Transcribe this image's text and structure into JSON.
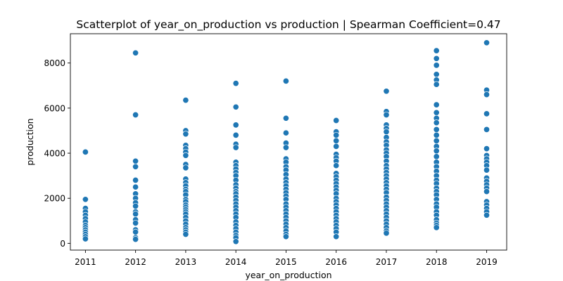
{
  "chart_data": {
    "type": "scatter",
    "title": "Scatterplot of year_on_production vs production | Spearman Coefficient=0.47",
    "xlabel": "year_on_production",
    "ylabel": "production",
    "xlim": [
      2010.7,
      2019.4
    ],
    "ylim": [
      -300,
      9300
    ],
    "xticks": [
      2011,
      2012,
      2013,
      2014,
      2015,
      2016,
      2017,
      2018,
      2019
    ],
    "yticks": [
      0,
      2000,
      4000,
      6000,
      8000
    ],
    "grid": false,
    "point_color": "#1f77b4",
    "series": [
      {
        "points": [
          [
            2011,
            4050
          ],
          [
            2011,
            1950
          ],
          [
            2011,
            1550
          ],
          [
            2011,
            1400
          ],
          [
            2011,
            1250
          ],
          [
            2011,
            1100
          ],
          [
            2011,
            950
          ],
          [
            2011,
            800
          ],
          [
            2011,
            700
          ],
          [
            2011,
            600
          ],
          [
            2011,
            500
          ],
          [
            2011,
            400
          ],
          [
            2011,
            300
          ],
          [
            2011,
            200
          ],
          [
            2012,
            8450
          ],
          [
            2012,
            5700
          ],
          [
            2012,
            3650
          ],
          [
            2012,
            3400
          ],
          [
            2012,
            2800
          ],
          [
            2012,
            2500
          ],
          [
            2012,
            2200
          ],
          [
            2012,
            2000
          ],
          [
            2012,
            1800
          ],
          [
            2012,
            1650
          ],
          [
            2012,
            1400
          ],
          [
            2012,
            1300
          ],
          [
            2012,
            1050
          ],
          [
            2012,
            900
          ],
          [
            2012,
            600
          ],
          [
            2012,
            500
          ],
          [
            2012,
            250
          ],
          [
            2012,
            180
          ],
          [
            2013,
            6350
          ],
          [
            2013,
            5000
          ],
          [
            2013,
            4850
          ],
          [
            2013,
            4350
          ],
          [
            2013,
            4200
          ],
          [
            2013,
            4050
          ],
          [
            2013,
            3900
          ],
          [
            2013,
            3500
          ],
          [
            2013,
            3350
          ],
          [
            2013,
            2850
          ],
          [
            2013,
            2700
          ],
          [
            2013,
            2550
          ],
          [
            2013,
            2400
          ],
          [
            2013,
            2300
          ],
          [
            2013,
            2150
          ],
          [
            2013,
            1950
          ],
          [
            2013,
            1850
          ],
          [
            2013,
            1700
          ],
          [
            2013,
            1600
          ],
          [
            2013,
            1500
          ],
          [
            2013,
            1400
          ],
          [
            2013,
            1300
          ],
          [
            2013,
            1150
          ],
          [
            2013,
            1000
          ],
          [
            2013,
            850
          ],
          [
            2013,
            700
          ],
          [
            2013,
            600
          ],
          [
            2013,
            500
          ],
          [
            2013,
            400
          ],
          [
            2014,
            7100
          ],
          [
            2014,
            6050
          ],
          [
            2014,
            5250
          ],
          [
            2014,
            4800
          ],
          [
            2014,
            4400
          ],
          [
            2014,
            4250
          ],
          [
            2014,
            3600
          ],
          [
            2014,
            3450
          ],
          [
            2014,
            3300
          ],
          [
            2014,
            3150
          ],
          [
            2014,
            3000
          ],
          [
            2014,
            2800
          ],
          [
            2014,
            2600
          ],
          [
            2014,
            2450
          ],
          [
            2014,
            2300
          ],
          [
            2014,
            2200
          ],
          [
            2014,
            2050
          ],
          [
            2014,
            1900
          ],
          [
            2014,
            1750
          ],
          [
            2014,
            1600
          ],
          [
            2014,
            1450
          ],
          [
            2014,
            1300
          ],
          [
            2014,
            1150
          ],
          [
            2014,
            950
          ],
          [
            2014,
            800
          ],
          [
            2014,
            650
          ],
          [
            2014,
            500
          ],
          [
            2014,
            350
          ],
          [
            2014,
            250
          ],
          [
            2014,
            80
          ],
          [
            2015,
            7200
          ],
          [
            2015,
            5550
          ],
          [
            2015,
            4900
          ],
          [
            2015,
            4450
          ],
          [
            2015,
            4250
          ],
          [
            2015,
            3750
          ],
          [
            2015,
            3600
          ],
          [
            2015,
            3400
          ],
          [
            2015,
            3250
          ],
          [
            2015,
            3050
          ],
          [
            2015,
            2850
          ],
          [
            2015,
            2700
          ],
          [
            2015,
            2550
          ],
          [
            2015,
            2400
          ],
          [
            2015,
            2250
          ],
          [
            2015,
            2100
          ],
          [
            2015,
            1950
          ],
          [
            2015,
            1750
          ],
          [
            2015,
            1600
          ],
          [
            2015,
            1450
          ],
          [
            2015,
            1300
          ],
          [
            2015,
            1150
          ],
          [
            2015,
            1000
          ],
          [
            2015,
            850
          ],
          [
            2015,
            700
          ],
          [
            2015,
            550
          ],
          [
            2015,
            400
          ],
          [
            2015,
            300
          ],
          [
            2016,
            5450
          ],
          [
            2016,
            4950
          ],
          [
            2016,
            4800
          ],
          [
            2016,
            4550
          ],
          [
            2016,
            4300
          ],
          [
            2016,
            3950
          ],
          [
            2016,
            3800
          ],
          [
            2016,
            3650
          ],
          [
            2016,
            3450
          ],
          [
            2016,
            3100
          ],
          [
            2016,
            2950
          ],
          [
            2016,
            2800
          ],
          [
            2016,
            2650
          ],
          [
            2016,
            2500
          ],
          [
            2016,
            2350
          ],
          [
            2016,
            2200
          ],
          [
            2016,
            2000
          ],
          [
            2016,
            1850
          ],
          [
            2016,
            1700
          ],
          [
            2016,
            1550
          ],
          [
            2016,
            1400
          ],
          [
            2016,
            1250
          ],
          [
            2016,
            1100
          ],
          [
            2016,
            950
          ],
          [
            2016,
            800
          ],
          [
            2016,
            650
          ],
          [
            2016,
            500
          ],
          [
            2016,
            300
          ],
          [
            2017,
            6750
          ],
          [
            2017,
            5850
          ],
          [
            2017,
            5700
          ],
          [
            2017,
            5250
          ],
          [
            2017,
            5100
          ],
          [
            2017,
            4950
          ],
          [
            2017,
            4700
          ],
          [
            2017,
            4500
          ],
          [
            2017,
            4350
          ],
          [
            2017,
            4150
          ],
          [
            2017,
            4000
          ],
          [
            2017,
            3850
          ],
          [
            2017,
            3650
          ],
          [
            2017,
            3450
          ],
          [
            2017,
            3300
          ],
          [
            2017,
            3150
          ],
          [
            2017,
            3000
          ],
          [
            2017,
            2850
          ],
          [
            2017,
            2700
          ],
          [
            2017,
            2550
          ],
          [
            2017,
            2400
          ],
          [
            2017,
            2250
          ],
          [
            2017,
            2050
          ],
          [
            2017,
            1900
          ],
          [
            2017,
            1750
          ],
          [
            2017,
            1600
          ],
          [
            2017,
            1450
          ],
          [
            2017,
            1300
          ],
          [
            2017,
            1150
          ],
          [
            2017,
            1000
          ],
          [
            2017,
            850
          ],
          [
            2017,
            700
          ],
          [
            2017,
            550
          ],
          [
            2017,
            450
          ],
          [
            2018,
            8550
          ],
          [
            2018,
            8200
          ],
          [
            2018,
            7900
          ],
          [
            2018,
            7500
          ],
          [
            2018,
            7250
          ],
          [
            2018,
            7050
          ],
          [
            2018,
            6150
          ],
          [
            2018,
            5800
          ],
          [
            2018,
            5550
          ],
          [
            2018,
            5350
          ],
          [
            2018,
            5050
          ],
          [
            2018,
            4800
          ],
          [
            2018,
            4550
          ],
          [
            2018,
            4300
          ],
          [
            2018,
            4100
          ],
          [
            2018,
            3850
          ],
          [
            2018,
            3600
          ],
          [
            2018,
            3400
          ],
          [
            2018,
            3200
          ],
          [
            2018,
            3000
          ],
          [
            2018,
            2800
          ],
          [
            2018,
            2650
          ],
          [
            2018,
            2450
          ],
          [
            2018,
            2300
          ],
          [
            2018,
            2150
          ],
          [
            2018,
            1950
          ],
          [
            2018,
            1750
          ],
          [
            2018,
            1600
          ],
          [
            2018,
            1400
          ],
          [
            2018,
            1250
          ],
          [
            2018,
            1050
          ],
          [
            2018,
            900
          ],
          [
            2018,
            800
          ],
          [
            2018,
            700
          ],
          [
            2019,
            8900
          ],
          [
            2019,
            6800
          ],
          [
            2019,
            6600
          ],
          [
            2019,
            5750
          ],
          [
            2019,
            5050
          ],
          [
            2019,
            4200
          ],
          [
            2019,
            3900
          ],
          [
            2019,
            3750
          ],
          [
            2019,
            3600
          ],
          [
            2019,
            3450
          ],
          [
            2019,
            3250
          ],
          [
            2019,
            2900
          ],
          [
            2019,
            2750
          ],
          [
            2019,
            2600
          ],
          [
            2019,
            2450
          ],
          [
            2019,
            2300
          ],
          [
            2019,
            1850
          ],
          [
            2019,
            1700
          ],
          [
            2019,
            1550
          ],
          [
            2019,
            1400
          ],
          [
            2019,
            1250
          ]
        ]
      }
    ]
  }
}
